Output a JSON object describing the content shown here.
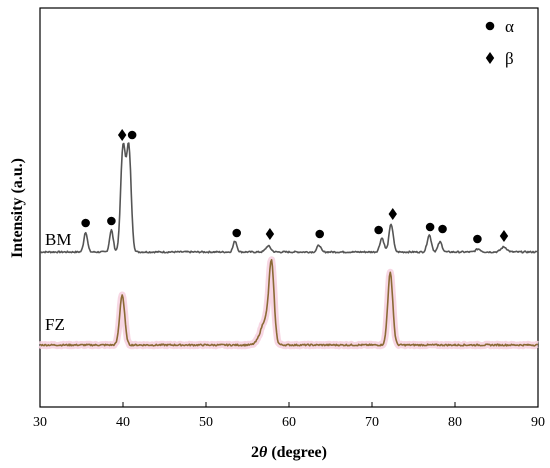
{
  "chart_data": {
    "type": "line",
    "xlabel_prefix": "2",
    "xlabel_italic": "θ",
    "xlabel_suffix": " (degree)",
    "ylabel": "Intensity (a.u.)",
    "xlim": [
      30,
      90
    ],
    "x_ticks": [
      "30",
      "40",
      "50",
      "60",
      "70",
      "80",
      "90"
    ],
    "legend": {
      "placement": "top-right",
      "entries": [
        {
          "marker": "circle",
          "label": "α"
        },
        {
          "marker": "diamond",
          "label": "β"
        }
      ]
    },
    "series": [
      {
        "name": "BM",
        "color": "#555555",
        "baseline": 0,
        "peaks": [
          {
            "x": 35.5,
            "h": 20,
            "w": 0.22
          },
          {
            "x": 38.6,
            "h": 22,
            "w": 0.22
          },
          {
            "x": 40.0,
            "h": 104,
            "w": 0.28
          },
          {
            "x": 40.7,
            "h": 104,
            "w": 0.28
          },
          {
            "x": 53.5,
            "h": 11,
            "w": 0.22
          },
          {
            "x": 57.5,
            "h": 6,
            "w": 0.3
          },
          {
            "x": 63.6,
            "h": 7,
            "w": 0.22
          },
          {
            "x": 71.2,
            "h": 14,
            "w": 0.25
          },
          {
            "x": 72.3,
            "h": 28,
            "w": 0.25
          },
          {
            "x": 76.9,
            "h": 17,
            "w": 0.25
          },
          {
            "x": 78.2,
            "h": 10,
            "w": 0.25
          },
          {
            "x": 82.8,
            "h": 3,
            "w": 0.3
          },
          {
            "x": 85.9,
            "h": 5,
            "w": 0.35
          }
        ],
        "markers": [
          {
            "x": 35.5,
            "type": "circle",
            "h": 29
          },
          {
            "x": 38.6,
            "type": "circle",
            "h": 31
          },
          {
            "x": 39.9,
            "type": "diamond",
            "h": 117
          },
          {
            "x": 41.1,
            "type": "circle",
            "h": 117
          },
          {
            "x": 53.7,
            "type": "circle",
            "h": 19
          },
          {
            "x": 57.7,
            "type": "diamond",
            "h": 18
          },
          {
            "x": 63.7,
            "type": "circle",
            "h": 18
          },
          {
            "x": 70.8,
            "type": "circle",
            "h": 22
          },
          {
            "x": 72.5,
            "type": "diamond",
            "h": 38
          },
          {
            "x": 77.0,
            "type": "circle",
            "h": 25
          },
          {
            "x": 78.5,
            "type": "circle",
            "h": 23
          },
          {
            "x": 82.7,
            "type": "circle",
            "h": 13
          },
          {
            "x": 85.9,
            "type": "diamond",
            "h": 16
          }
        ]
      },
      {
        "name": "FZ",
        "color": "#8b6a35",
        "glow": "#f6d2e0",
        "baseline": 0,
        "peaks": [
          {
            "x": 39.9,
            "h": 50,
            "w": 0.3
          },
          {
            "x": 57.2,
            "h": 25,
            "w": 0.6
          },
          {
            "x": 57.9,
            "h": 72,
            "w": 0.3
          },
          {
            "x": 72.2,
            "h": 72,
            "w": 0.3
          }
        ]
      }
    ]
  }
}
